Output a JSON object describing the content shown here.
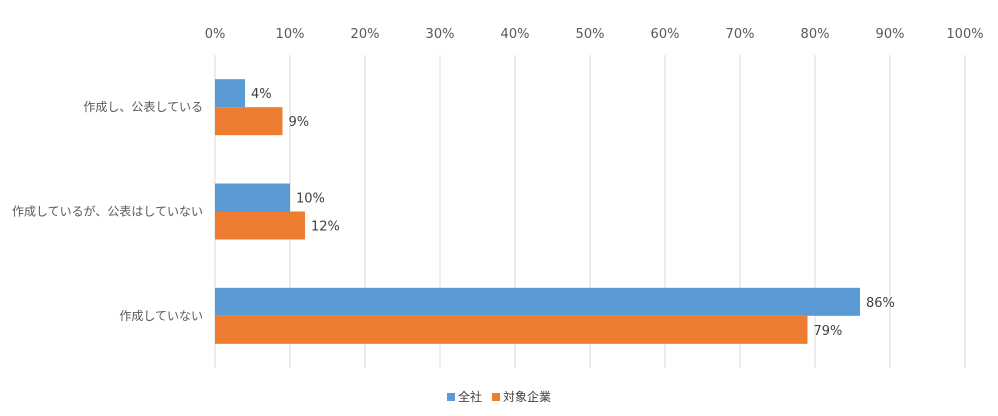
{
  "chart_data": {
    "type": "bar",
    "orientation": "horizontal",
    "categories": [
      "作成し、公表している",
      "作成しているが、公表はしていない",
      "作成していない"
    ],
    "series": [
      {
        "name": "全社",
        "values": [
          4,
          10,
          86
        ],
        "labels": [
          "4%",
          "10%",
          "86%"
        ],
        "color": "#5B9BD5"
      },
      {
        "name": "対象企業",
        "values": [
          9,
          12,
          79
        ],
        "labels": [
          "9%",
          "12%",
          "79%"
        ],
        "color": "#ED7D31"
      }
    ],
    "xlim": [
      0,
      100
    ],
    "x_ticks": [
      "0%",
      "10%",
      "20%",
      "30%",
      "40%",
      "50%",
      "60%",
      "70%",
      "80%",
      "90%",
      "100%"
    ],
    "grid": true,
    "x_axis_position": "top",
    "legend_position": "bottom"
  }
}
